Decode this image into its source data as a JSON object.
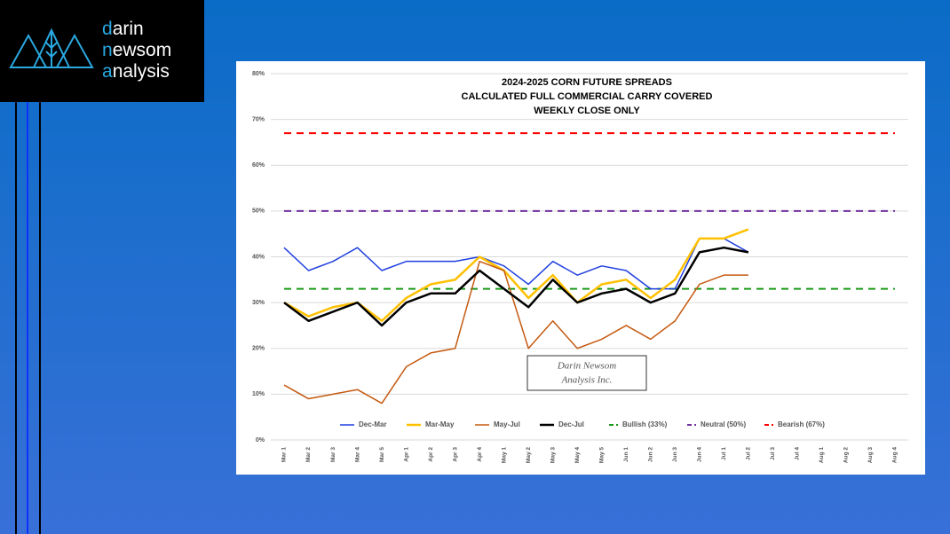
{
  "logo": {
    "lines": [
      {
        "accent": "d",
        "rest": "arin"
      },
      {
        "accent": "n",
        "rest": "ewsom"
      },
      {
        "accent": "a",
        "rest": "nalysis"
      }
    ]
  },
  "chart_data": {
    "type": "line",
    "title": [
      "2024-2025 CORN FUTURE SPREADS",
      "CALCULATED FULL COMMERCIAL CARRY COVERED",
      "WEEKLY CLOSE ONLY"
    ],
    "categories": [
      "Mar 1",
      "Mar 2",
      "Mar 3",
      "Mar 4",
      "Mar 5",
      "Apr 1",
      "Apr 2",
      "Apr 3",
      "Apr 4",
      "May 1",
      "May 2",
      "May 3",
      "May 4",
      "May 5",
      "Jun 1",
      "Jun 2",
      "Jun 3",
      "Jun 4",
      "Jul 1",
      "Jul 2",
      "Jul 3",
      "Jul 4",
      "Aug 1",
      "Aug 2",
      "Aug 3",
      "Aug 4"
    ],
    "series": [
      {
        "name": "Dec-Mar",
        "color": "#1f3fe0",
        "width": 1.5,
        "style": "solid",
        "values": [
          42,
          37,
          39,
          42,
          37,
          39,
          39,
          39,
          40,
          38,
          34,
          39,
          36,
          38,
          37,
          33,
          33,
          44,
          44,
          41,
          null,
          null,
          null,
          null,
          null,
          null
        ]
      },
      {
        "name": "Mar-May",
        "color": "#ffc000",
        "width": 2.5,
        "style": "solid",
        "values": [
          30,
          27,
          29,
          30,
          26,
          31,
          34,
          35,
          40,
          37,
          31,
          36,
          30,
          34,
          35,
          31,
          35,
          44,
          44,
          46,
          null,
          null,
          null,
          null,
          null,
          null
        ]
      },
      {
        "name": "May-Jul",
        "color": "#c55a11",
        "width": 1.5,
        "style": "solid",
        "values": [
          12,
          9,
          10,
          11,
          8,
          16,
          19,
          20,
          39,
          37,
          20,
          26,
          20,
          22,
          25,
          22,
          26,
          34,
          36,
          36,
          null,
          null,
          null,
          null,
          null,
          null
        ]
      },
      {
        "name": "Dec-Jul",
        "color": "#000000",
        "width": 2.5,
        "style": "solid",
        "values": [
          30,
          26,
          28,
          30,
          25,
          30,
          32,
          32,
          37,
          33,
          29,
          35,
          30,
          32,
          33,
          30,
          32,
          41,
          42,
          41,
          null,
          null,
          null,
          null,
          null,
          null
        ]
      },
      {
        "name": "Bullish (33%)",
        "color": "#1a9a1a",
        "width": 2,
        "style": "dashed",
        "values": [
          33,
          33,
          33,
          33,
          33,
          33,
          33,
          33,
          33,
          33,
          33,
          33,
          33,
          33,
          33,
          33,
          33,
          33,
          33,
          33,
          33,
          33,
          33,
          33,
          33,
          33
        ]
      },
      {
        "name": "Neutral (50%)",
        "color": "#7030a0",
        "width": 2,
        "style": "dashed",
        "values": [
          50,
          50,
          50,
          50,
          50,
          50,
          50,
          50,
          50,
          50,
          50,
          50,
          50,
          50,
          50,
          50,
          50,
          50,
          50,
          50,
          50,
          50,
          50,
          50,
          50,
          50
        ]
      },
      {
        "name": "Bearish (67%)",
        "color": "#ff0000",
        "width": 2,
        "style": "dashed",
        "values": [
          67,
          67,
          67,
          67,
          67,
          67,
          67,
          67,
          67,
          67,
          67,
          67,
          67,
          67,
          67,
          67,
          67,
          67,
          67,
          67,
          67,
          67,
          67,
          67,
          67,
          67
        ]
      }
    ],
    "ylim": [
      0,
      80
    ],
    "yticks": [
      {
        "value": 0,
        "label": "0%"
      },
      {
        "value": 10,
        "label": "10%"
      },
      {
        "value": 20,
        "label": "20%"
      },
      {
        "value": 30,
        "label": "30%"
      },
      {
        "value": 40,
        "label": "40%"
      },
      {
        "value": 50,
        "label": "50%"
      },
      {
        "value": 60,
        "label": "60%"
      },
      {
        "value": 70,
        "label": "70%"
      },
      {
        "value": 80,
        "label": "80%"
      }
    ],
    "grid": true,
    "legend": "bottom",
    "watermark": [
      "Darin Newsom",
      "Analysis Inc."
    ]
  }
}
